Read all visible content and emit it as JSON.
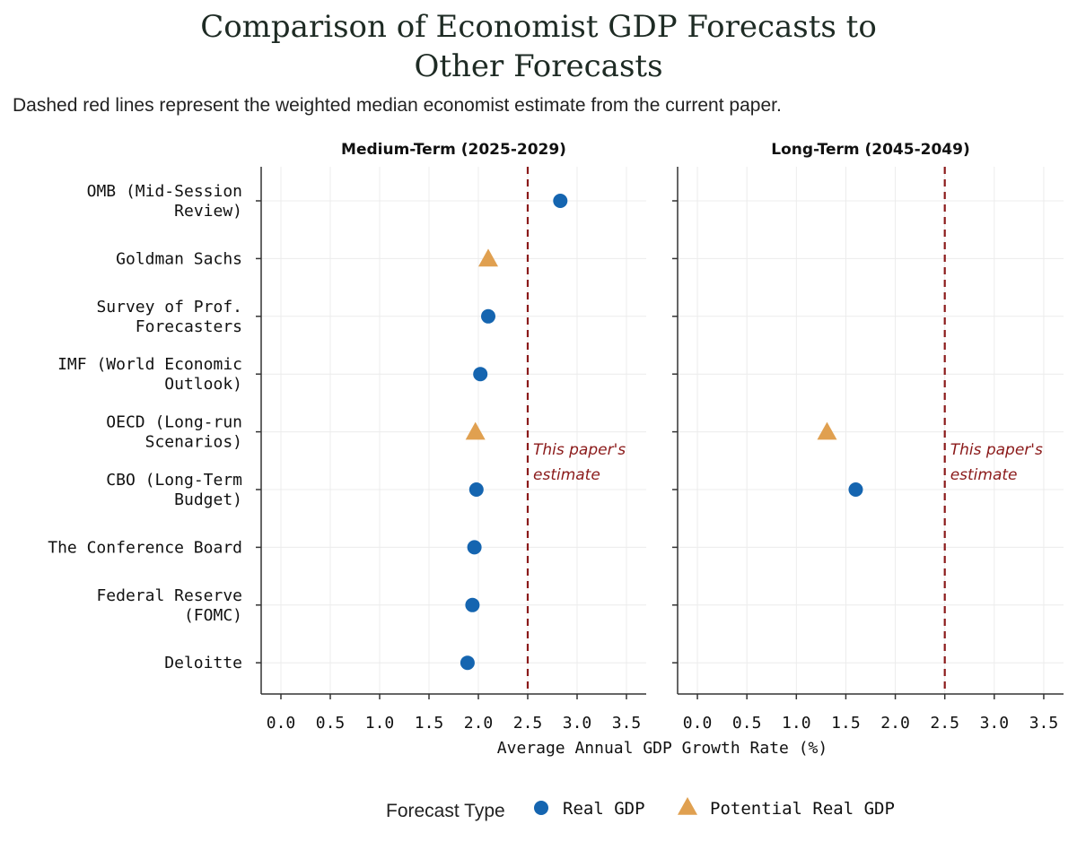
{
  "colors": {
    "real_gdp": "#1565b0",
    "potential_real_gdp": "#e0a050",
    "reference_line": "#8b1a1a",
    "grid": "#ececec",
    "axis": "#333333"
  },
  "chart_data": {
    "type": "scatter",
    "title_line1": "Comparison of Economist GDP Forecasts to",
    "title_line2": "Other Forecasts",
    "subtitle": "Dashed red lines represent the weighted median economist estimate from the current paper.",
    "xlabel": "Average Annual GDP Growth Rate (%)",
    "xlim": [
      -0.2,
      3.7
    ],
    "xticks": [
      "0.0",
      "0.5",
      "1.0",
      "1.5",
      "2.0",
      "2.5",
      "3.0",
      "3.5"
    ],
    "xtick_values": [
      0,
      0.5,
      1.0,
      1.5,
      2.0,
      2.5,
      3.0,
      3.5
    ],
    "categories": [
      [
        "OMB (Mid-Session",
        "Review)"
      ],
      [
        "Goldman Sachs"
      ],
      [
        "Survey of Prof.",
        "Forecasters"
      ],
      [
        "IMF (World Economic",
        "Outlook)"
      ],
      [
        "OECD (Long-run",
        "Scenarios)"
      ],
      [
        "CBO (Long-Term",
        "Budget)"
      ],
      [
        "The Conference Board"
      ],
      [
        "Federal Reserve",
        "(FOMC)"
      ],
      [
        "Deloitte"
      ]
    ],
    "reference_value": 2.5,
    "reference_label_line1": "This paper's",
    "reference_label_line2": "estimate",
    "panels": [
      {
        "title": "Medium-Term (2025-2029)",
        "points": [
          {
            "category": 0,
            "value": 2.83,
            "type": "Real GDP"
          },
          {
            "category": 1,
            "value": 2.1,
            "type": "Potential Real GDP"
          },
          {
            "category": 2,
            "value": 2.1,
            "type": "Real GDP"
          },
          {
            "category": 3,
            "value": 2.02,
            "type": "Real GDP"
          },
          {
            "category": 4,
            "value": 1.97,
            "type": "Potential Real GDP"
          },
          {
            "category": 5,
            "value": 1.98,
            "type": "Real GDP"
          },
          {
            "category": 6,
            "value": 1.96,
            "type": "Real GDP"
          },
          {
            "category": 7,
            "value": 1.94,
            "type": "Real GDP"
          },
          {
            "category": 8,
            "value": 1.89,
            "type": "Real GDP"
          }
        ]
      },
      {
        "title": "Long-Term (2045-2049)",
        "points": [
          {
            "category": 4,
            "value": 1.31,
            "type": "Potential Real GDP"
          },
          {
            "category": 5,
            "value": 1.6,
            "type": "Real GDP"
          }
        ]
      }
    ],
    "legend": {
      "title": "Forecast Type",
      "entries": [
        "Real GDP",
        "Potential Real GDP"
      ]
    }
  }
}
